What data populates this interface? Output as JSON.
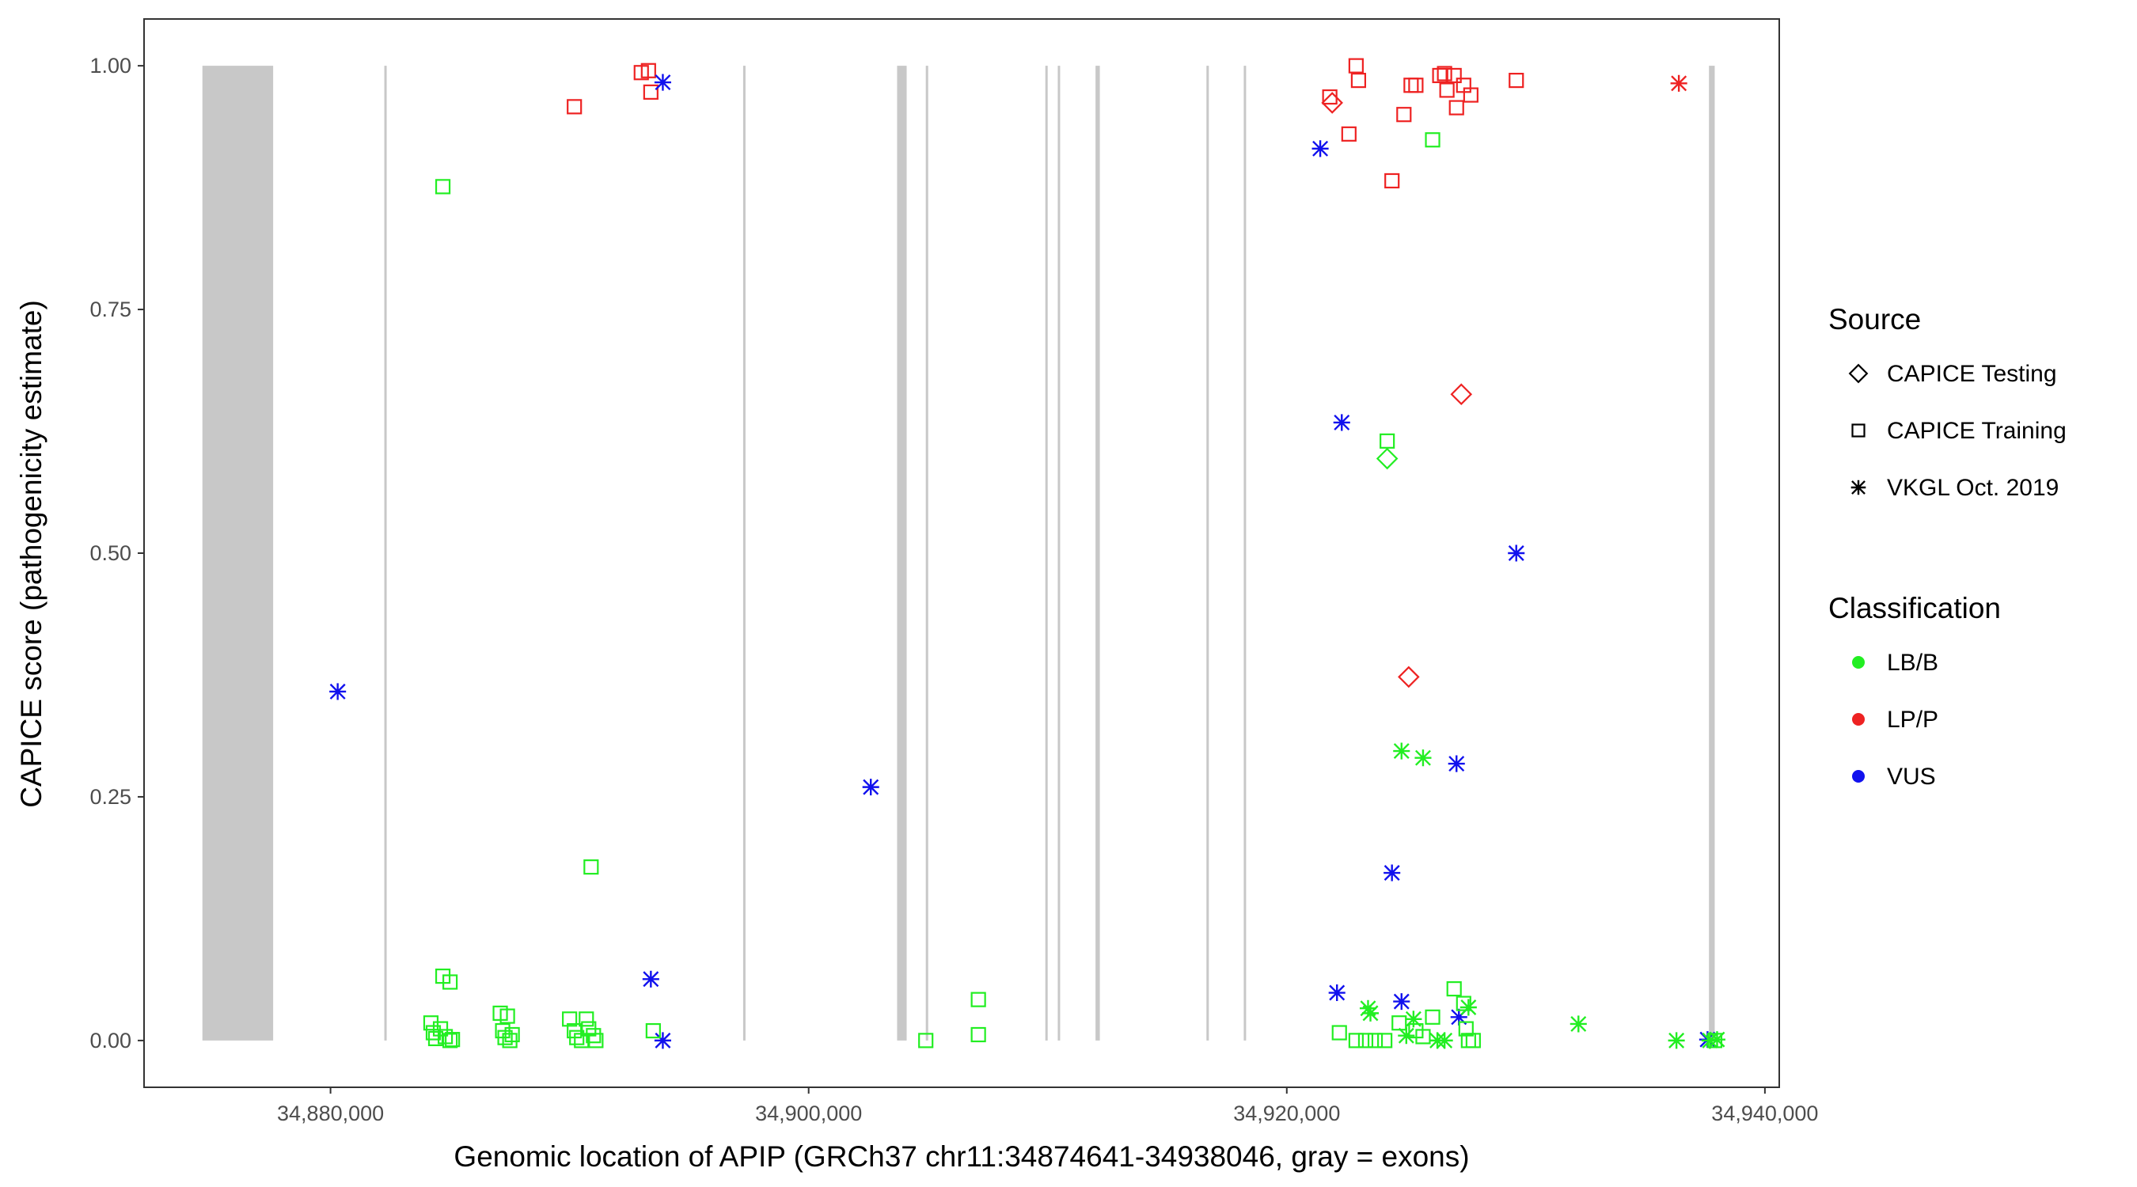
{
  "chart_data": {
    "type": "scatter",
    "title": "",
    "xlabel": "Genomic location of APIP (GRCh37 chr11:34874641-34938046, gray = exons)",
    "ylabel": "CAPICE score (pathogenicity estimate)",
    "xlim": [
      34872200,
      34940600
    ],
    "ylim": [
      -0.048,
      1.048
    ],
    "x_ticks": [
      34880000,
      34900000,
      34920000,
      34940000
    ],
    "x_tick_labels": [
      "34,880,000",
      "34,900,000",
      "34,920,000",
      "34,940,000"
    ],
    "y_ticks": [
      0.0,
      0.25,
      0.5,
      0.75,
      1.0
    ],
    "y_tick_labels": [
      "0.00",
      "0.25",
      "0.50",
      "0.75",
      "1.00"
    ],
    "grid": false,
    "legend_position": "right",
    "exon_color": "#c8c8c8",
    "exons": [
      [
        34874641,
        34877600
      ],
      [
        34882250,
        34882300
      ],
      [
        34897260,
        34897310
      ],
      [
        34903700,
        34904100
      ],
      [
        34904900,
        34905000
      ],
      [
        34909900,
        34909980
      ],
      [
        34910420,
        34910500
      ],
      [
        34912000,
        34912180
      ],
      [
        34916640,
        34916700
      ],
      [
        34918200,
        34918260
      ],
      [
        34937660,
        34937900
      ]
    ],
    "legend": {
      "source_title": "Source",
      "sources": [
        {
          "key": "testing",
          "label": "CAPICE Testing",
          "shape": "diamond"
        },
        {
          "key": "training",
          "label": "CAPICE Training",
          "shape": "square"
        },
        {
          "key": "vkgl",
          "label": "VKGL Oct. 2019",
          "shape": "asterisk"
        }
      ],
      "classification_title": "Classification",
      "classes": [
        {
          "key": "lbb",
          "label": "LB/B",
          "color": "#22ee22"
        },
        {
          "key": "lpp",
          "label": "LP/P",
          "color": "#ee2222"
        },
        {
          "key": "vus",
          "label": "VUS",
          "color": "#1111ee"
        }
      ]
    },
    "series": [
      {
        "source": "training",
        "classification": "lpp",
        "points": [
          [
            34890200,
            0.958
          ],
          [
            34893000,
            0.993
          ],
          [
            34893300,
            0.995
          ],
          [
            34893400,
            0.973
          ],
          [
            34921800,
            0.968
          ],
          [
            34922600,
            0.93
          ],
          [
            34922900,
            1.0
          ],
          [
            34923000,
            0.985
          ],
          [
            34924400,
            0.882
          ],
          [
            34924900,
            0.95
          ],
          [
            34925200,
            0.98
          ],
          [
            34925400,
            0.98
          ],
          [
            34926400,
            0.99
          ],
          [
            34926600,
            0.992
          ],
          [
            34926700,
            0.975
          ],
          [
            34927000,
            0.99
          ],
          [
            34927100,
            0.957
          ],
          [
            34927400,
            0.98
          ],
          [
            34927700,
            0.97
          ],
          [
            34929600,
            0.985
          ]
        ]
      },
      {
        "source": "testing",
        "classification": "lpp",
        "points": [
          [
            34921900,
            0.962
          ],
          [
            34927300,
            0.663
          ],
          [
            34925100,
            0.373
          ]
        ]
      },
      {
        "source": "vkgl",
        "classification": "lpp",
        "points": [
          [
            34936400,
            0.982
          ]
        ]
      },
      {
        "source": "vkgl",
        "classification": "vus",
        "points": [
          [
            34893900,
            0.983
          ],
          [
            34880300,
            0.358
          ],
          [
            34902600,
            0.26
          ],
          [
            34893400,
            0.063
          ],
          [
            34893900,
            0.0
          ],
          [
            34921400,
            0.915
          ],
          [
            34922300,
            0.634
          ],
          [
            34929600,
            0.5
          ],
          [
            34927100,
            0.284
          ],
          [
            34924400,
            0.172
          ],
          [
            34922100,
            0.049
          ],
          [
            34924800,
            0.04
          ],
          [
            34927200,
            0.024
          ],
          [
            34937600,
            0.001
          ]
        ]
      },
      {
        "source": "training",
        "classification": "lbb",
        "points": [
          [
            34884700,
            0.876
          ],
          [
            34890900,
            0.178
          ],
          [
            34884700,
            0.066
          ],
          [
            34885000,
            0.06
          ],
          [
            34884200,
            0.018
          ],
          [
            34884300,
            0.008
          ],
          [
            34884400,
            0.002
          ],
          [
            34884600,
            0.012
          ],
          [
            34884800,
            0.004
          ],
          [
            34885000,
            0.0
          ],
          [
            34885100,
            0.001
          ],
          [
            34887100,
            0.028
          ],
          [
            34887200,
            0.01
          ],
          [
            34887300,
            0.003
          ],
          [
            34887400,
            0.025
          ],
          [
            34887500,
            0.0
          ],
          [
            34887600,
            0.006
          ],
          [
            34890000,
            0.022
          ],
          [
            34890200,
            0.01
          ],
          [
            34890300,
            0.003
          ],
          [
            34890500,
            0.0
          ],
          [
            34890700,
            0.022
          ],
          [
            34890800,
            0.012
          ],
          [
            34891000,
            0.005
          ],
          [
            34891100,
            0.0
          ],
          [
            34893500,
            0.01
          ],
          [
            34904900,
            0.0
          ],
          [
            34907100,
            0.042
          ],
          [
            34907100,
            0.006
          ],
          [
            34926100,
            0.924
          ],
          [
            34924200,
            0.615
          ],
          [
            34922200,
            0.008
          ],
          [
            34922900,
            0.0
          ],
          [
            34923300,
            0.0
          ],
          [
            34923700,
            0.0
          ],
          [
            34924100,
            0.0
          ],
          [
            34924700,
            0.018
          ],
          [
            34925400,
            0.01
          ],
          [
            34925700,
            0.004
          ],
          [
            34926100,
            0.024
          ],
          [
            34927000,
            0.053
          ],
          [
            34927400,
            0.038
          ],
          [
            34927500,
            0.012
          ],
          [
            34927600,
            0.0
          ],
          [
            34927800,
            0.0
          ],
          [
            34937900,
            0.0
          ]
        ]
      },
      {
        "source": "testing",
        "classification": "lbb",
        "points": [
          [
            34924200,
            0.597
          ]
        ]
      },
      {
        "source": "vkgl",
        "classification": "lbb",
        "points": [
          [
            34924800,
            0.297
          ],
          [
            34925700,
            0.29
          ],
          [
            34923400,
            0.033
          ],
          [
            34923500,
            0.028
          ],
          [
            34925300,
            0.022
          ],
          [
            34925000,
            0.005
          ],
          [
            34926300,
            0.0
          ],
          [
            34926600,
            0.0
          ],
          [
            34927600,
            0.034
          ],
          [
            34932200,
            0.017
          ],
          [
            34936300,
            0.0
          ],
          [
            34937700,
            0.0
          ],
          [
            34938000,
            0.001
          ]
        ]
      }
    ]
  }
}
